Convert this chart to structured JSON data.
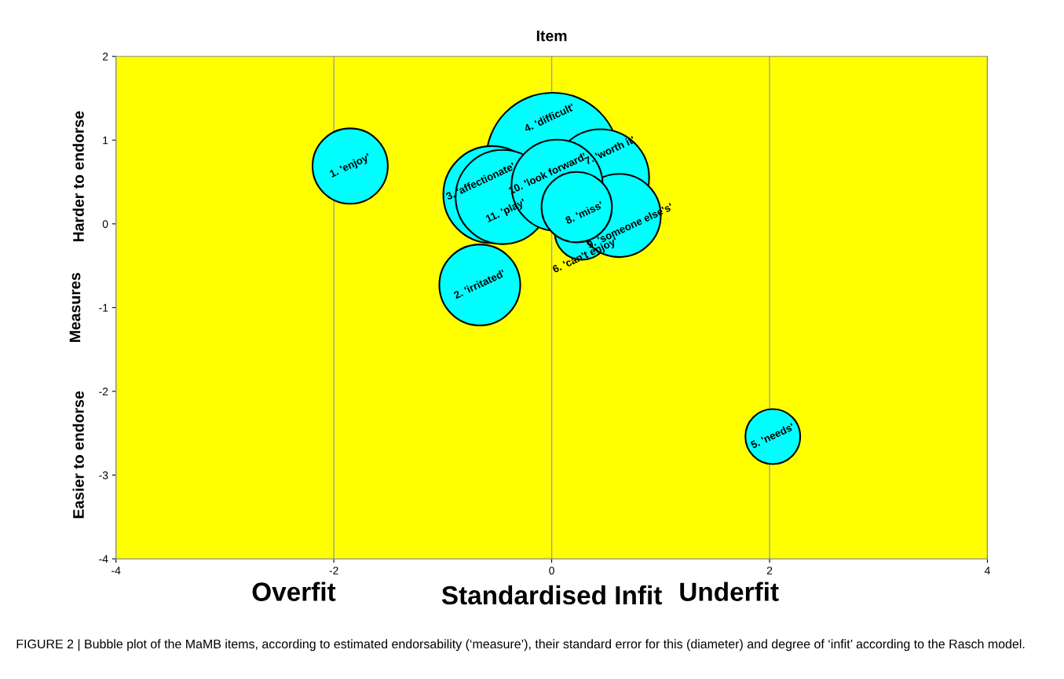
{
  "chart_data": {
    "type": "bubble",
    "title": "Item",
    "xlabel": "Standardised Infit",
    "ylabel": "Measures",
    "annotations": [
      "Harder to endorse",
      "Easier to endorse",
      "Overfit",
      "Underfit",
      "FIGURE 2 | Bubble plot of the MaMB items, according to estimated endorsability (‘measure’), their standard error for this (diameter) and degree of ‘infit’ according to the Rasch model."
    ],
    "series": [
      {
        "name": "1. 'enjoy'",
        "color": "#00ffff",
        "x": [
          -1.85
        ],
        "values": [
          0.69
        ],
        "sizes": [
          0.32
        ]
      },
      {
        "name": "2. 'irritated'",
        "color": "#00ffff",
        "x": [
          -0.66
        ],
        "values": [
          -0.73
        ],
        "sizes": [
          0.37
        ]
      },
      {
        "name": "5. 'needs'",
        "color": "#00ffff",
        "x": [
          2.03
        ],
        "values": [
          -2.54
        ],
        "sizes": [
          0.17
        ]
      },
      {
        "name": "4. 'difficult'",
        "color": "#00ffff",
        "x": [
          0.01
        ],
        "values": [
          0.77
        ],
        "sizes": [
          1
        ]
      },
      {
        "name": "7. 'worth it'",
        "color": "#00ffff",
        "x": [
          0.45
        ],
        "values": [
          0.55
        ],
        "sizes": [
          0.53
        ]
      },
      {
        "name": "3. 'affectionate'",
        "color": "#00ffff",
        "x": [
          -0.55
        ],
        "values": [
          0.35
        ],
        "sizes": [
          0.53
        ]
      },
      {
        "name": "6. 'can't enjoy'",
        "color": "#00ffff",
        "x": [
          0.28
        ],
        "values": [
          -0.1
        ],
        "sizes": [
          0.17
        ]
      },
      {
        "name": "9. 'someone else's'",
        "color": "#00ffff",
        "x": [
          0.62
        ],
        "values": [
          0.1
        ],
        "sizes": [
          0.39
        ]
      },
      {
        "name": "11. 'play'",
        "color": "#00ffff",
        "x": [
          -0.45
        ],
        "values": [
          0.32
        ],
        "sizes": [
          0.5
        ]
      },
      {
        "name": "10. 'look forward'",
        "color": "#00ffff",
        "x": [
          0.05
        ],
        "values": [
          0.46
        ],
        "sizes": [
          0.47
        ]
      },
      {
        "name": "8. 'miss'",
        "color": "#00ffff",
        "x": [
          0.23
        ],
        "values": [
          0.2
        ],
        "sizes": [
          0.28
        ]
      }
    ],
    "xlim": [
      -4,
      4
    ],
    "ylim": [
      -4,
      2
    ],
    "xticks": [
      -4,
      -2,
      0,
      2,
      4
    ],
    "yticks": [
      -4,
      -3,
      -2,
      -1,
      0,
      1,
      2
    ],
    "grid": "x"
  }
}
